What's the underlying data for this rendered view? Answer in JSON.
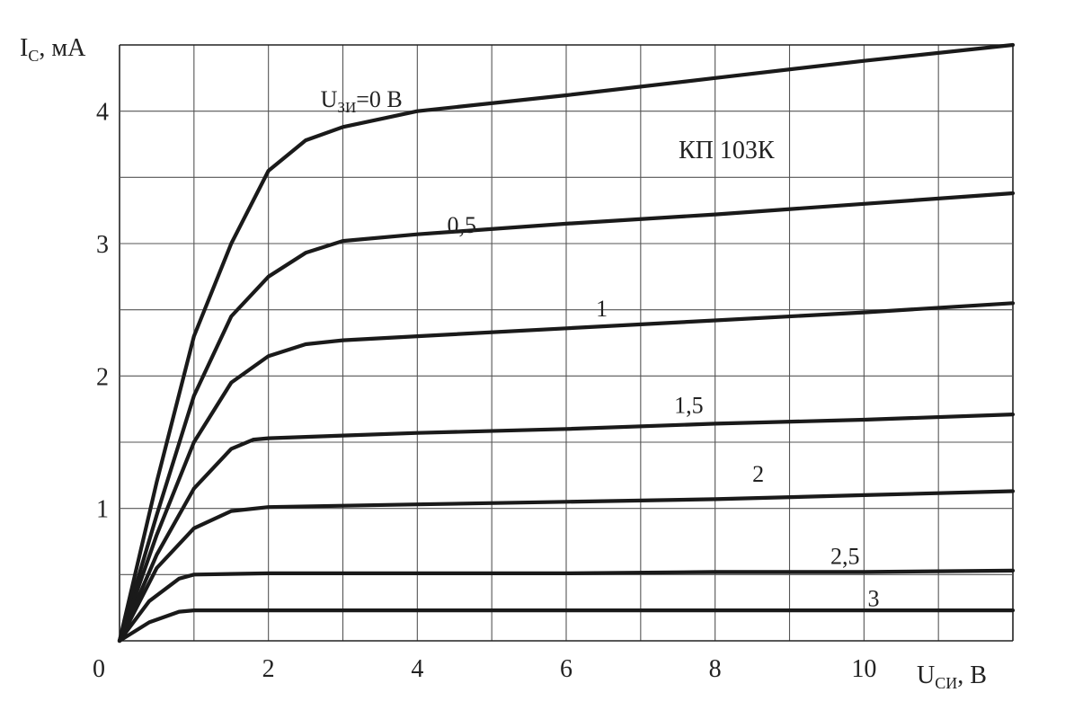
{
  "chart_data": {
    "type": "line",
    "title": "",
    "device": "КП 103К",
    "xlabel": {
      "main": "U",
      "sub": "СИ",
      "unit": ", В"
    },
    "ylabel": {
      "main": "I",
      "sub": "С",
      "unit": ", мА"
    },
    "xlim": [
      0,
      12
    ],
    "ylim": [
      0,
      4.5
    ],
    "grid": true,
    "x_ticks": [
      {
        "value": 0,
        "label": "0"
      },
      {
        "value": 2,
        "label": "2"
      },
      {
        "value": 4,
        "label": "4"
      },
      {
        "value": 6,
        "label": "6"
      },
      {
        "value": 8,
        "label": "8"
      },
      {
        "value": 10,
        "label": "10"
      }
    ],
    "y_ticks": [
      {
        "value": 1,
        "label": "1"
      },
      {
        "value": 2,
        "label": "2"
      },
      {
        "value": 3,
        "label": "3"
      },
      {
        "value": 4,
        "label": "4"
      }
    ],
    "series_label_prefix": {
      "main": "U",
      "sub": "ЗИ",
      "unit": "=0 В"
    },
    "series": [
      {
        "label": "",
        "label_x": 2.7,
        "label_y": 4.03,
        "points": [
          [
            0,
            0
          ],
          [
            0.5,
            1.2
          ],
          [
            1,
            2.3
          ],
          [
            1.5,
            3.0
          ],
          [
            2,
            3.55
          ],
          [
            2.5,
            3.78
          ],
          [
            3,
            3.88
          ],
          [
            4,
            4.0
          ],
          [
            6,
            4.12
          ],
          [
            8,
            4.25
          ],
          [
            10,
            4.38
          ],
          [
            12,
            4.5
          ]
        ]
      },
      {
        "label": "0,5",
        "label_x": 4.4,
        "label_y": 3.08,
        "points": [
          [
            0,
            0
          ],
          [
            0.5,
            0.95
          ],
          [
            1,
            1.85
          ],
          [
            1.5,
            2.45
          ],
          [
            2,
            2.75
          ],
          [
            2.5,
            2.93
          ],
          [
            3,
            3.02
          ],
          [
            4,
            3.07
          ],
          [
            6,
            3.15
          ],
          [
            8,
            3.22
          ],
          [
            10,
            3.3
          ],
          [
            12,
            3.38
          ]
        ]
      },
      {
        "label": "1",
        "label_x": 6.4,
        "label_y": 2.45,
        "points": [
          [
            0,
            0
          ],
          [
            0.5,
            0.8
          ],
          [
            1,
            1.5
          ],
          [
            1.5,
            1.95
          ],
          [
            2,
            2.15
          ],
          [
            2.5,
            2.24
          ],
          [
            3,
            2.27
          ],
          [
            4,
            2.3
          ],
          [
            6,
            2.36
          ],
          [
            8,
            2.42
          ],
          [
            10,
            2.48
          ],
          [
            12,
            2.55
          ]
        ]
      },
      {
        "label": "1,5",
        "label_x": 7.45,
        "label_y": 1.72,
        "points": [
          [
            0,
            0
          ],
          [
            0.5,
            0.65
          ],
          [
            1,
            1.15
          ],
          [
            1.5,
            1.45
          ],
          [
            1.8,
            1.52
          ],
          [
            2,
            1.53
          ],
          [
            3,
            1.55
          ],
          [
            4,
            1.57
          ],
          [
            6,
            1.6
          ],
          [
            8,
            1.64
          ],
          [
            10,
            1.67
          ],
          [
            12,
            1.71
          ]
        ]
      },
      {
        "label": "2",
        "label_x": 8.5,
        "label_y": 1.2,
        "points": [
          [
            0,
            0
          ],
          [
            0.5,
            0.55
          ],
          [
            1,
            0.85
          ],
          [
            1.5,
            0.98
          ],
          [
            2,
            1.01
          ],
          [
            3,
            1.02
          ],
          [
            4,
            1.03
          ],
          [
            6,
            1.05
          ],
          [
            8,
            1.07
          ],
          [
            10,
            1.1
          ],
          [
            12,
            1.13
          ]
        ]
      },
      {
        "label": "2,5",
        "label_x": 9.55,
        "label_y": 0.58,
        "points": [
          [
            0,
            0
          ],
          [
            0.4,
            0.3
          ],
          [
            0.8,
            0.47
          ],
          [
            1,
            0.5
          ],
          [
            2,
            0.51
          ],
          [
            6,
            0.51
          ],
          [
            8,
            0.52
          ],
          [
            10,
            0.52
          ],
          [
            12,
            0.53
          ]
        ]
      },
      {
        "label": "3",
        "label_x": 10.05,
        "label_y": 0.26,
        "points": [
          [
            0,
            0
          ],
          [
            0.4,
            0.14
          ],
          [
            0.8,
            0.22
          ],
          [
            1,
            0.23
          ],
          [
            4,
            0.23
          ],
          [
            8,
            0.23
          ],
          [
            12,
            0.23
          ]
        ]
      }
    ]
  }
}
